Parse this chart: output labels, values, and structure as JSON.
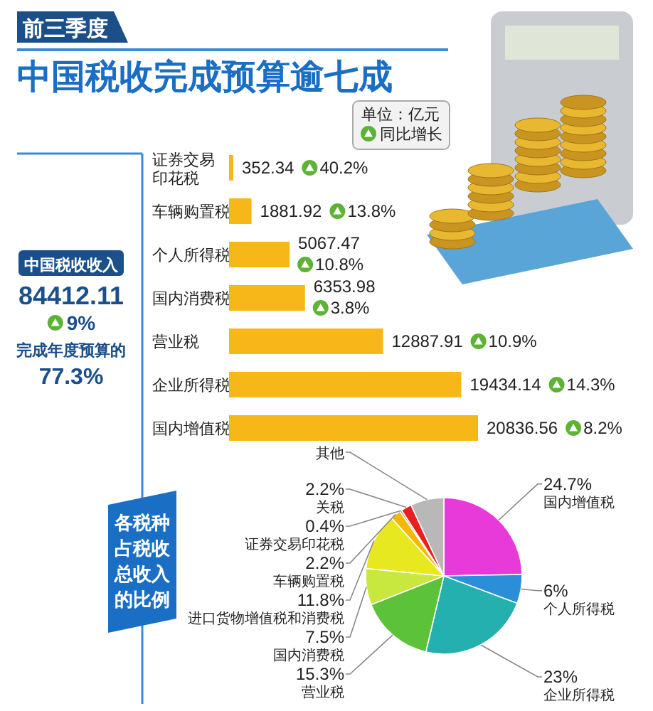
{
  "chart_data": [
    {
      "type": "bar",
      "orientation": "horizontal",
      "subtitle": "前三季度",
      "title": "中国税收完成预算逾七成",
      "color": "#f7b718",
      "data_labels": true,
      "categories": [
        "证券交易印花税",
        "车辆购置税",
        "个人所得税",
        "国内消费税",
        "营业税",
        "企业所得税",
        "国内增值税"
      ],
      "values": [
        352.34,
        1881.92,
        5067.47,
        6353.98,
        12887.91,
        19434.14,
        20836.56
      ],
      "annotations": [
        "单位：亿元",
        "同比增长",
        "40.2%",
        "13.8%",
        "10.8%",
        "3.8%",
        "10.9%",
        "14.3%",
        "8.2%"
      ]
    },
    {
      "type": "other",
      "title": "中国税收收入",
      "annotations": [
        "84412.11",
        "9%",
        "完成年度预算的",
        "77.3%"
      ]
    },
    {
      "type": "pie",
      "title": "各税种占税收总收入的比例",
      "categories": [
        "国内增值税",
        "个人所得税",
        "企业所得税",
        "营业税",
        "国内消费税",
        "进口货物增值税和消费税",
        "车辆购置税",
        "证券交易印花税",
        "关税",
        "其他"
      ],
      "values": [
        24.7,
        6,
        23,
        15.3,
        7.5,
        11.8,
        2.2,
        0.4,
        2.2,
        6.9
      ],
      "value_labels": [
        "24.7%",
        "6%",
        "23%",
        "15.3%",
        "7.5%",
        "11.8%",
        "2.2%",
        "0.4%",
        "2.2%",
        null
      ],
      "colors": [
        "#e83ad8",
        "#2a8fd8",
        "#25b0b0",
        "#5cc23a",
        "#c8e840",
        "#e8e820",
        "#f5b800",
        "#e86010",
        "#e82020",
        "#b8b8b8"
      ]
    }
  ]
}
